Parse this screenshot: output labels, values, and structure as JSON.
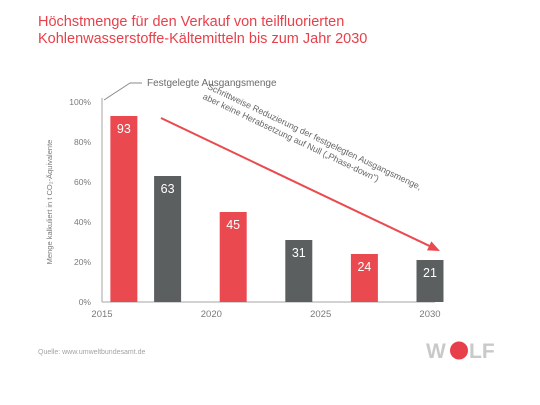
{
  "title_lines": [
    "Höchstmenge für den Verkauf von teilfluorierten",
    "Kohlenwasserstoffe-Kältemitteln bis zum Jahr 2030"
  ],
  "source": "Quelle: www.umweltbundesamt.de",
  "logo": {
    "text": "WOLF",
    "accent": "#e8404a"
  },
  "colors": {
    "red": "#ea4a4f",
    "gray": "#5b5f60",
    "title": "#e8404a",
    "axis": "#a6a6a6",
    "text": "#7a7a7a"
  },
  "chart_data": {
    "type": "bar",
    "ylabel": "Menge kalkuliert in t CO₂-Äquivalente",
    "ylim": [
      0,
      100
    ],
    "yticks": [
      "0%",
      "20%",
      "40%",
      "60%",
      "80%",
      "100%"
    ],
    "xlim": [
      2015,
      2030
    ],
    "xticks": [
      "2015",
      "2020",
      "2025",
      "2030"
    ],
    "series": [
      {
        "x": 2016,
        "value": 93,
        "label": "93",
        "color": "red"
      },
      {
        "x": 2018,
        "value": 63,
        "label": "63",
        "color": "gray"
      },
      {
        "x": 2021,
        "value": 45,
        "label": "45",
        "color": "red"
      },
      {
        "x": 2024,
        "value": 31,
        "label": "31",
        "color": "gray"
      },
      {
        "x": 2027,
        "value": 24,
        "label": "24",
        "color": "red"
      },
      {
        "x": 2030,
        "value": 21,
        "label": "21",
        "color": "gray"
      }
    ],
    "annotations": {
      "baseline": "Festgelegte Ausgangsmenge",
      "arrow_lines": [
        "Schrittweise Reduzierung der festgelegten Ausgangsmenge,",
        "aber keine Herabsetzung auf Null („Phase-down\")"
      ]
    }
  }
}
